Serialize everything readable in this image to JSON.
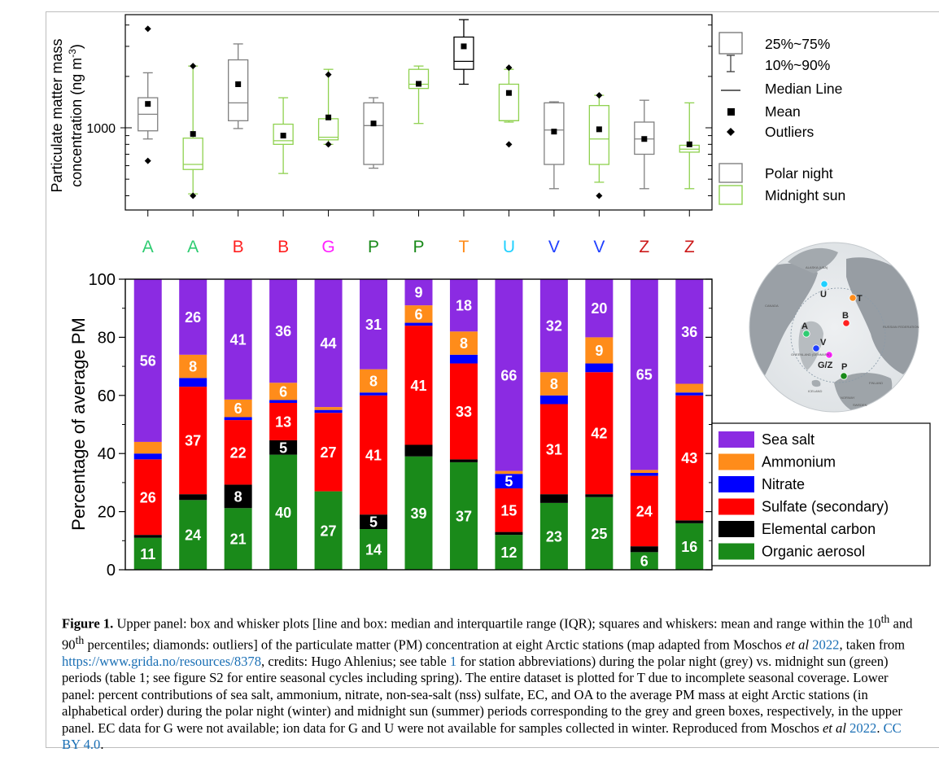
{
  "box_legend": {
    "iqr": "25%~75%",
    "range": "10%~90%",
    "median": "Median Line",
    "mean": "Mean",
    "outliers": "Outliers",
    "polar_night": "Polar night",
    "midnight_sun": "Midnight sun"
  },
  "upper_axis": {
    "ylabel_line1": "Particulate matter mass",
    "ylabel_line2": "concentration (ng m",
    "ylabel_sup": "-3",
    "ylabel_close": ")",
    "tick": "1000"
  },
  "lower_axis": {
    "ylabel": "Percentage of average PM",
    "ticks": [
      "0",
      "20",
      "40",
      "60",
      "80",
      "100"
    ]
  },
  "map": {
    "labels": [
      "U",
      "T",
      "B",
      "A",
      "V",
      "G/Z",
      "P"
    ],
    "region_labels": [
      "ALASKA (USA)",
      "CANADA",
      "RUSSIAN FEDERATION",
      "GREENLAND (DENMARK)",
      "ICELAND",
      "NORWAY",
      "FINLAND",
      "SWEDEN"
    ]
  },
  "colors": {
    "polar_night": "#808080",
    "midnight_sun": "#8fd14f",
    "sea_salt": "#8b2be2",
    "ammonium": "#ff8c1a",
    "nitrate": "#0000ff",
    "sulfate": "#ff0000",
    "elemental_carbon": "#000000",
    "organic_aerosol": "#1a8a1a"
  },
  "chart_data": [
    {
      "type": "box",
      "ylabel": "Particulate matter mass concentration (ng m-3)",
      "yscale": "log",
      "categories": [
        "A",
        "A",
        "B",
        "B",
        "G",
        "P",
        "P",
        "T",
        "U",
        "V",
        "V",
        "Z",
        "Z"
      ],
      "category_colors": [
        "#2ecc71",
        "#2ecc71",
        "#ff2020",
        "#ff2020",
        "#ff20ff",
        "#1a8a1a",
        "#1a8a1a",
        "#ff8c1a",
        "#20d0ff",
        "#2040ff",
        "#2040ff",
        "#cc1a1a",
        "#cc1a1a"
      ],
      "period": [
        "polar night",
        "midnight sun",
        "polar night",
        "midnight sun",
        "midnight sun",
        "polar night",
        "midnight sun",
        "polar night",
        "midnight sun",
        "polar night",
        "midnight sun",
        "polar night",
        "midnight sun"
      ],
      "p10": [
        860,
        410,
        990,
        540,
        800,
        580,
        1060,
        1800,
        1080,
        440,
        480,
        440,
        440
      ],
      "q1": [
        960,
        570,
        1100,
        800,
        850,
        610,
        1700,
        2200,
        1100,
        610,
        610,
        700,
        720
      ],
      "median": [
        1200,
        610,
        1400,
        840,
        880,
        1030,
        1800,
        2450,
        1100,
        970,
        860,
        860,
        750
      ],
      "q3": [
        1500,
        870,
        2500,
        1050,
        1130,
        1400,
        2200,
        3400,
        1800,
        1400,
        1350,
        1080,
        790
      ],
      "p90": [
        2100,
        2300,
        3100,
        1500,
        2200,
        1500,
        2300,
        4300,
        2200,
        1420,
        1550,
        1450,
        1400
      ],
      "mean": [
        1380,
        920,
        1800,
        900,
        1150,
        1060,
        1810,
        3000,
        1600,
        950,
        980,
        860,
        800
      ],
      "outliers": [
        [
          3800,
          640
        ],
        [
          2300,
          400
        ],
        [],
        [],
        [
          2050,
          800
        ],
        [],
        [],
        [],
        [
          2250,
          800
        ],
        [],
        [
          1550,
          400
        ],
        [],
        []
      ]
    },
    {
      "type": "bar",
      "stacked": true,
      "ylabel": "Percentage of average PM",
      "ylim": [
        0,
        100
      ],
      "categories": [
        "A",
        "A",
        "B",
        "B",
        "G",
        "P",
        "P",
        "T",
        "U",
        "V",
        "V",
        "Z",
        "Z"
      ],
      "series": [
        {
          "name": "Organic aerosol",
          "values": [
            11,
            24,
            21,
            40,
            27,
            14,
            39,
            37,
            12,
            23,
            25,
            6,
            16
          ]
        },
        {
          "name": "Elemental carbon",
          "values": [
            1,
            2,
            8,
            5,
            0,
            5,
            4,
            1,
            1,
            3,
            1,
            2,
            1
          ]
        },
        {
          "name": "Sulfate (secondary)",
          "values": [
            26,
            37,
            22,
            13,
            27,
            41,
            41,
            33,
            15,
            31,
            42,
            24,
            43
          ]
        },
        {
          "name": "Nitrate",
          "values": [
            2,
            3,
            1,
            1,
            1,
            1,
            1,
            3,
            5,
            3,
            3,
            1,
            1
          ]
        },
        {
          "name": "Ammonium",
          "values": [
            4,
            8,
            6,
            6,
            1,
            8,
            6,
            8,
            1,
            8,
            9,
            1,
            3
          ]
        },
        {
          "name": "Sea salt",
          "values": [
            56,
            26,
            41,
            36,
            44,
            31,
            9,
            18,
            66,
            32,
            20,
            65,
            36
          ]
        }
      ],
      "data_labels": [
        [
          11,
          null,
          26,
          null,
          null,
          56
        ],
        [
          24,
          null,
          37,
          null,
          8,
          26
        ],
        [
          21,
          8,
          22,
          null,
          6,
          41
        ],
        [
          40,
          5,
          13,
          null,
          6,
          36
        ],
        [
          27,
          null,
          27,
          null,
          null,
          44
        ],
        [
          14,
          5,
          41,
          null,
          8,
          31
        ],
        [
          39,
          null,
          41,
          null,
          6,
          9
        ],
        [
          37,
          null,
          33,
          null,
          8,
          18
        ],
        [
          12,
          null,
          15,
          5,
          null,
          66
        ],
        [
          23,
          null,
          31,
          null,
          8,
          32
        ],
        [
          25,
          null,
          42,
          null,
          9,
          20
        ],
        [
          6,
          null,
          24,
          null,
          null,
          65
        ],
        [
          16,
          null,
          43,
          null,
          null,
          36
        ]
      ]
    }
  ],
  "caption": {
    "label": "Figure 1.",
    "t1": " Upper panel: box and whisker plots [line and box: median and interquartile range (IQR); squares and whiskers: mean and range within the 10",
    "sup1": "th",
    "t2": " and 90",
    "sup2": "th",
    "t3": " percentiles; diamonds: outliers] of the particulate matter (PM) concentration at eight Arctic stations (map adapted from Moschos ",
    "etal1": "et al",
    "t4": " ",
    "year1": "2022",
    "t5": ", taken from ",
    "url": "https://www.grida.no/resources/8378",
    "t6": ", credits: Hugo Ahlenius; see table ",
    "tbl": "1",
    "t7": " for station abbreviations) during the polar night (grey) vs. midnight sun (green) periods (table 1; see figure S2 for entire seasonal cycles including spring). The entire dataset is plotted for T due to incomplete seasonal coverage. Lower panel: percent contributions of sea salt, ammonium, nitrate, non-sea-salt (nss) sulfate, EC, and OA to the average PM mass at eight Arctic stations (in alphabetical order) during the polar night (winter) and midnight sun (summer) periods corresponding to the grey and green boxes, respectively, in the upper panel. EC data for G were not available; ion data for G and U were not available for samples collected in winter. Reproduced from Moschos ",
    "etal2": "et al",
    "t8": " ",
    "year2": "2022",
    "t9": ". ",
    "license": "CC BY 4.0",
    "t10": "."
  }
}
